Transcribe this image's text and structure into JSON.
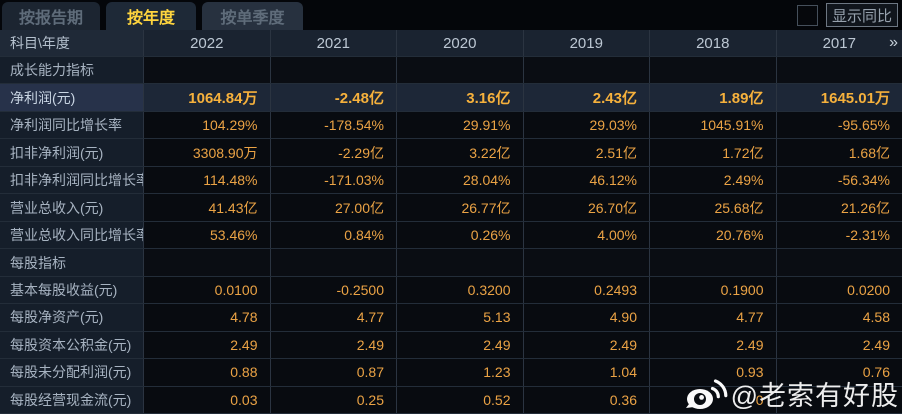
{
  "tabs": [
    {
      "label": "按报告期",
      "active": false
    },
    {
      "label": "按年度",
      "active": true
    },
    {
      "label": "按单季度",
      "active": false
    }
  ],
  "show_yoy": {
    "label": "显示同比",
    "checked": false
  },
  "table": {
    "corner_label": "科目\\年度",
    "years": [
      "2022",
      "2021",
      "2020",
      "2019",
      "2018",
      "2017"
    ],
    "more_icon": "»",
    "rows": [
      {
        "type": "section",
        "label": "成长能力指标",
        "values": [
          "",
          "",
          "",
          "",
          "",
          ""
        ]
      },
      {
        "type": "data",
        "highlight": true,
        "label": "净利润(元)",
        "values": [
          "1064.84万",
          "-2.48亿",
          "3.16亿",
          "2.43亿",
          "1.89亿",
          "1645.01万"
        ]
      },
      {
        "type": "data",
        "label": "净利润同比增长率",
        "values": [
          "104.29%",
          "-178.54%",
          "29.91%",
          "29.03%",
          "1045.91%",
          "-95.65%"
        ]
      },
      {
        "type": "data",
        "label": "扣非净利润(元)",
        "values": [
          "3308.90万",
          "-2.29亿",
          "3.22亿",
          "2.51亿",
          "1.72亿",
          "1.68亿"
        ]
      },
      {
        "type": "data",
        "label": "扣非净利润同比增长率",
        "values": [
          "114.48%",
          "-171.03%",
          "28.04%",
          "46.12%",
          "2.49%",
          "-56.34%"
        ]
      },
      {
        "type": "data",
        "label": "营业总收入(元)",
        "values": [
          "41.43亿",
          "27.00亿",
          "26.77亿",
          "26.70亿",
          "25.68亿",
          "21.26亿"
        ]
      },
      {
        "type": "data",
        "label": "营业总收入同比增长率",
        "values": [
          "53.46%",
          "0.84%",
          "0.26%",
          "4.00%",
          "20.76%",
          "-2.31%"
        ]
      },
      {
        "type": "section",
        "label": "每股指标",
        "values": [
          "",
          "",
          "",
          "",
          "",
          ""
        ]
      },
      {
        "type": "data",
        "label": "基本每股收益(元)",
        "values": [
          "0.0100",
          "-0.2500",
          "0.3200",
          "0.2493",
          "0.1900",
          "0.0200"
        ]
      },
      {
        "type": "data",
        "label": "每股净资产(元)",
        "values": [
          "4.78",
          "4.77",
          "5.13",
          "4.90",
          "4.77",
          "4.58"
        ]
      },
      {
        "type": "data",
        "label": "每股资本公积金(元)",
        "values": [
          "2.49",
          "2.49",
          "2.49",
          "2.49",
          "2.49",
          "2.49"
        ]
      },
      {
        "type": "data",
        "label": "每股未分配利润(元)",
        "values": [
          "0.88",
          "0.87",
          "1.23",
          "1.04",
          "0.93",
          "0.76"
        ]
      },
      {
        "type": "data",
        "label": "每股经营现金流(元)",
        "obscured_by_watermark": true,
        "values": [
          "0.03",
          "0.25",
          "0.52",
          "0.36",
          "0",
          ""
        ]
      }
    ]
  },
  "watermark": {
    "icon": "weibo-icon",
    "text": "@老索有好股"
  },
  "colors": {
    "value_gold": "#eba345",
    "highlight_value_gold": "#f6b13c",
    "highlight_row_bg": "#1d2737",
    "tab_active_text": "#ffd53e",
    "header_bg": "#1a2330",
    "label_column_bg": "#151e2a",
    "watermark_white": "#fafafa"
  }
}
